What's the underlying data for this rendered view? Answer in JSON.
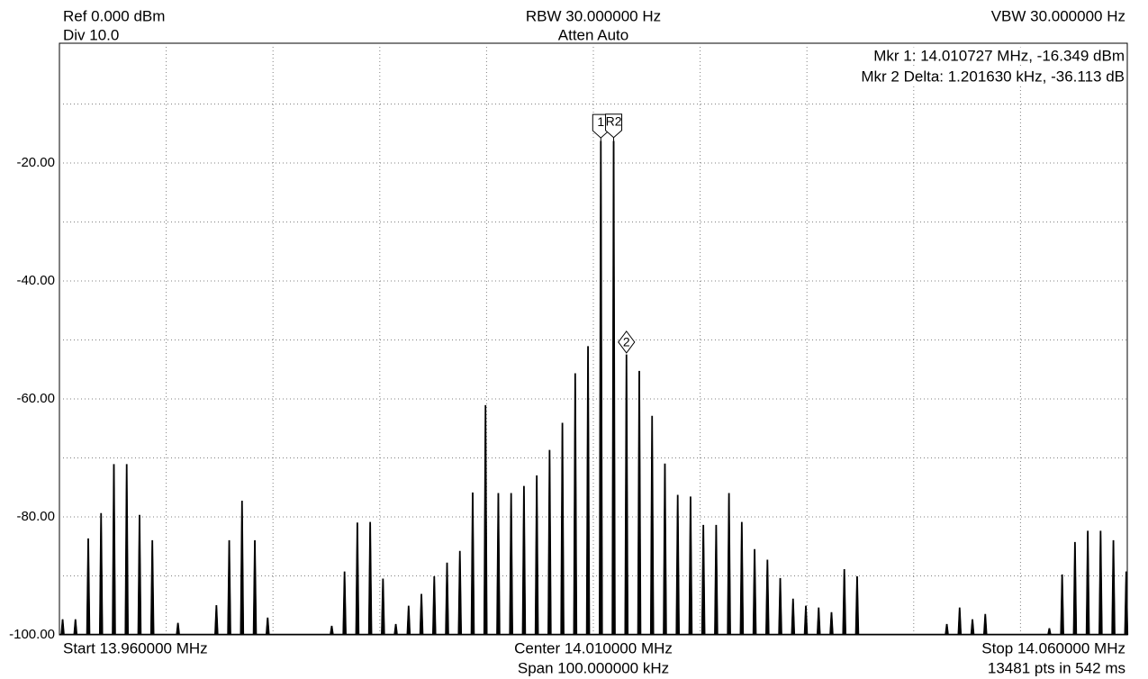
{
  "chart_data": {
    "type": "spectrum",
    "header": {
      "ref": "Ref 0.000 dBm",
      "div": "Div 10.0",
      "rbw": "RBW 30.000000 Hz",
      "atten": "Atten Auto",
      "vbw": "VBW 30.000000 Hz",
      "mkr1": "Mkr 1: 14.010727 MHz, -16.349 dBm",
      "mkr2": "Mkr 2 Delta: 1.201630 kHz, -36.113 dB"
    },
    "footer": {
      "start": "Start 13.960000 MHz",
      "center": "Center 14.010000 MHz",
      "span": "Span 100.000000 kHz",
      "stop": "Stop 14.060000 MHz",
      "points": "13481 pts in 542 ms"
    },
    "xlim": [
      13.96,
      14.06
    ],
    "ylim": [
      -100,
      0
    ],
    "yticks": [
      {
        "value": -20,
        "label": "-20.00"
      },
      {
        "value": -40,
        "label": "-40.00"
      },
      {
        "value": -60,
        "label": "-60.00"
      },
      {
        "value": -80,
        "label": "-80.00"
      },
      {
        "value": -100,
        "label": "-100.00"
      }
    ],
    "ygrid": [
      -90,
      -70,
      -50,
      -30,
      -10
    ],
    "xgrid": [
      13.97,
      13.98,
      13.99,
      14.0,
      14.01,
      14.02,
      14.03,
      14.04,
      14.05
    ],
    "grid": true,
    "color": "#000000",
    "x": [
      13.9603,
      13.9615,
      13.9627,
      13.9639,
      13.9651,
      13.9663,
      13.9675,
      13.9687,
      13.9711,
      13.9747,
      13.9759,
      13.9771,
      13.9783,
      13.9795,
      13.9855,
      13.9867,
      13.9879,
      13.9891,
      13.9903,
      13.9915,
      13.9927,
      13.9939,
      13.9951,
      13.9963,
      13.9975,
      13.9987,
      13.9999,
      14.0011,
      14.0023,
      14.0035,
      14.0047,
      14.0059,
      14.0071,
      14.0083,
      14.0095,
      14.0107,
      14.0119,
      14.0131,
      14.0143,
      14.0155,
      14.0167,
      14.0179,
      14.0191,
      14.0203,
      14.0215,
      14.0227,
      14.0239,
      14.0251,
      14.0263,
      14.0275,
      14.0287,
      14.0299,
      14.0311,
      14.0323,
      14.0335,
      14.0347,
      14.0431,
      14.0443,
      14.0455,
      14.0467,
      14.0527,
      14.0539,
      14.0551,
      14.0563,
      14.0575,
      14.0587,
      14.0599
    ],
    "values": [
      -97.4,
      -97.4,
      -83.7,
      -79.4,
      -71.1,
      -71.1,
      -79.7,
      -84,
      -98,
      -95,
      -84,
      -77.3,
      -84,
      -97.1,
      -98.5,
      -89.3,
      -81,
      -80.9,
      -90.5,
      -98.2,
      -95.1,
      -93.1,
      -90.1,
      -87.8,
      -85.8,
      -75.9,
      -61.1,
      -76,
      -76,
      -74.8,
      -73,
      -68.7,
      -64.1,
      -55.7,
      -51.1,
      -16.3,
      -16.3,
      -52.5,
      -55.3,
      -62.9,
      -71,
      -76.3,
      -76.6,
      -81.4,
      -81.4,
      -76,
      -80.9,
      -85.5,
      -87.3,
      -90.4,
      -93.9,
      -95.1,
      -95.4,
      -96.2,
      -88.9,
      -90.1,
      -98.2,
      -95.4,
      -97.4,
      -96.5,
      -98.9,
      -89.8,
      -84.3,
      -82.4,
      -82.4,
      -84,
      -89.3
    ],
    "markers": [
      {
        "label": "1",
        "x": 14.0107,
        "y": -16.349,
        "shape": "pentagon"
      },
      {
        "label": "R2",
        "x": 14.0119,
        "y": -16.3,
        "shape": "pentagon"
      },
      {
        "label": "2",
        "x": 14.0131,
        "y": -52.5,
        "shape": "diamond"
      }
    ]
  }
}
